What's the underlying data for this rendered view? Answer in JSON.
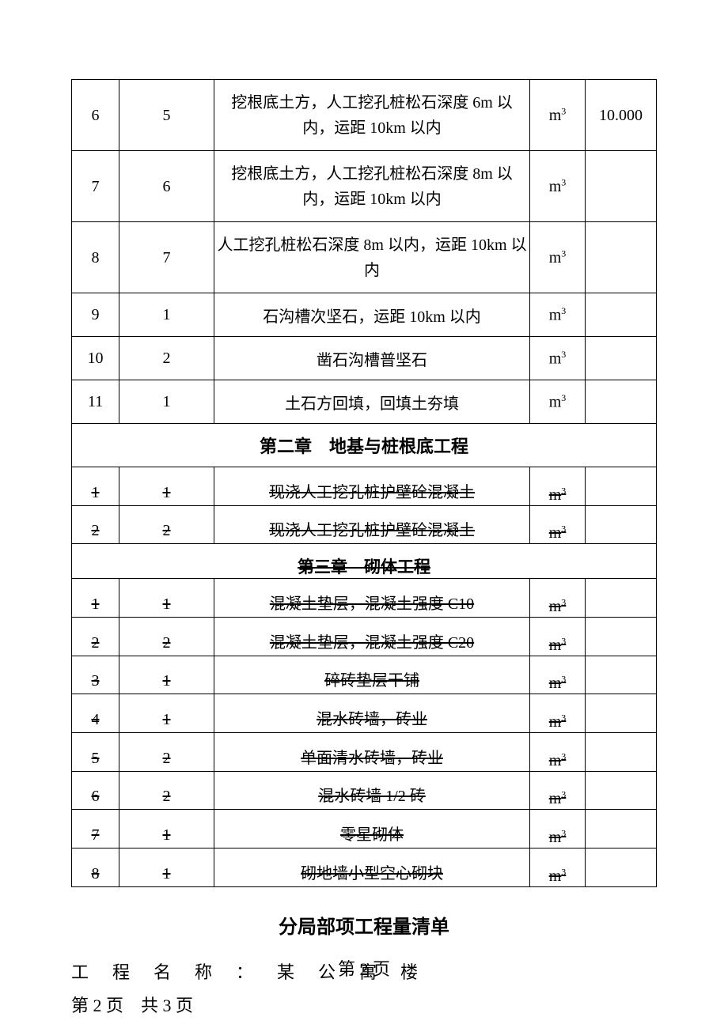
{
  "table": {
    "col_widths": {
      "col1": 60,
      "col2": 120,
      "col4": 70,
      "col5": 90
    },
    "rows_main": [
      {
        "cells": [
          "6",
          "5",
          "挖根底土方，人工挖孔桩松石深度 6m 以内，运距 10km 以内",
          "m³",
          "10.000"
        ],
        "tall": true
      },
      {
        "cells": [
          "7",
          "6",
          "挖根底土方，人工挖孔桩松石深度 8m 以内，运距 10km 以内",
          "m³",
          ""
        ],
        "tall": true
      },
      {
        "cells": [
          "8",
          "7",
          "人工挖孔桩松石深度 8m 以内，运距 10km 以内",
          "m³",
          ""
        ],
        "tall": true
      },
      {
        "cells": [
          "9",
          "1",
          "石沟槽次坚石，运距 10km 以内",
          "m³",
          ""
        ],
        "tall": false
      },
      {
        "cells": [
          "10",
          "2",
          "凿石沟槽普坚石",
          "m³",
          ""
        ],
        "tall": false
      },
      {
        "cells": [
          "11",
          "1",
          "土石方回填，回填土夯填",
          "m³",
          ""
        ],
        "tall": false
      }
    ],
    "section2_header": "第二章　地基与桩根底工程",
    "rows_section2": [
      {
        "cells": [
          "1",
          "1",
          "现浇人工挖孔桩护壁砼混凝土",
          "m³",
          ""
        ]
      },
      {
        "cells": [
          "2",
          "2",
          "现浇人工挖孔桩护壁砼混凝土",
          "m³",
          ""
        ]
      }
    ],
    "section3_header": "第三章　砌体工程",
    "rows_section3": [
      {
        "cells": [
          "1",
          "1",
          "混凝土垫层，混凝土强度 C10",
          "m³",
          ""
        ]
      },
      {
        "cells": [
          "2",
          "2",
          "混凝土垫层，混凝土强度 C20",
          "m³",
          ""
        ]
      },
      {
        "cells": [
          "3",
          "1",
          "碎砖垫层干铺",
          "m³",
          ""
        ]
      },
      {
        "cells": [
          "4",
          "1",
          "混水砖墙，砖业",
          "m³",
          ""
        ]
      },
      {
        "cells": [
          "5",
          "2",
          "单面清水砖墙，砖业",
          "m³",
          ""
        ]
      },
      {
        "cells": [
          "6",
          "2",
          "混水砖墙 1/2 砖",
          "m³",
          ""
        ]
      },
      {
        "cells": [
          "7",
          "1",
          "零星砌体",
          "m³",
          ""
        ]
      },
      {
        "cells": [
          "8",
          "1",
          "砌地墙小型空心砌块",
          "m³",
          ""
        ]
      }
    ]
  },
  "title2": "分局部项工程量清单",
  "project_label": "工程名称：某公寓楼",
  "page_info": "第 2 页　共 3 页",
  "footer": "第 2 页"
}
